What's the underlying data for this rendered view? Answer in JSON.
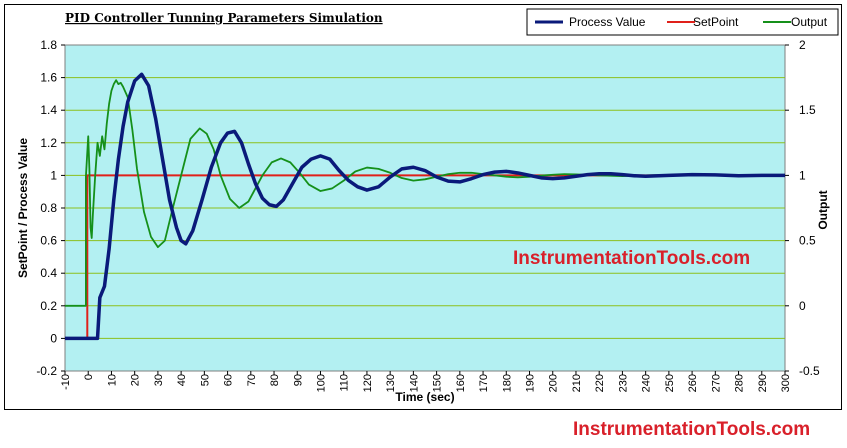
{
  "watermark_plot": "InstrumentationTools.com",
  "watermark_bottom": "InstrumentationTools.com",
  "chart_data": {
    "type": "line",
    "title": "PID Controller Tunning Parameters Simulation",
    "xlabel": "Time (sec)",
    "ylabel": "SetPoint / Process Value",
    "y2label": "Output",
    "xlim": [
      -10,
      300
    ],
    "ylim": [
      -0.2,
      1.8
    ],
    "y2lim": [
      -0.5,
      2
    ],
    "x_ticks": [
      -10,
      0,
      10,
      20,
      30,
      40,
      50,
      60,
      70,
      80,
      90,
      100,
      110,
      120,
      130,
      140,
      150,
      160,
      170,
      180,
      190,
      200,
      210,
      220,
      230,
      240,
      250,
      260,
      270,
      280,
      290,
      300
    ],
    "y_ticks": [
      "-0.2",
      "0",
      "0.2",
      "0.4",
      "0.6",
      "0.8",
      "1",
      "1.2",
      "1.4",
      "1.6",
      "1.8"
    ],
    "y2_ticks": [
      "-0.5",
      "0",
      "0.5",
      "1",
      "1.5",
      "2"
    ],
    "grid": "horizontal",
    "legend_position": "top-right",
    "colors": {
      "plot_bg": "#b3f0f2",
      "grid": "#8cbf1e",
      "process": "#0a1a7a",
      "setpoint": "#e0201a",
      "output": "#15901a"
    },
    "series": [
      {
        "name": "Process Value",
        "axis": "left",
        "color": "#0a1a7a",
        "x": [
          -10,
          2,
          3,
          4,
          5,
          7,
          9,
          11,
          13,
          15,
          17,
          20,
          23,
          26,
          29,
          32,
          35,
          38,
          40,
          42,
          45,
          49,
          53,
          57,
          60,
          63,
          66,
          69,
          72,
          75,
          78,
          81,
          84,
          88,
          92,
          96,
          100,
          104,
          108,
          112,
          116,
          120,
          125,
          130,
          135,
          140,
          145,
          150,
          155,
          160,
          165,
          170,
          175,
          180,
          185,
          190,
          195,
          200,
          205,
          210,
          215,
          220,
          225,
          230,
          235,
          240,
          250,
          260,
          270,
          280,
          290,
          300
        ],
        "y": [
          0,
          0,
          0,
          0,
          0.25,
          0.32,
          0.55,
          0.85,
          1.1,
          1.3,
          1.45,
          1.58,
          1.62,
          1.55,
          1.35,
          1.1,
          0.85,
          0.68,
          0.6,
          0.58,
          0.66,
          0.85,
          1.05,
          1.2,
          1.26,
          1.27,
          1.2,
          1.07,
          0.95,
          0.86,
          0.82,
          0.81,
          0.85,
          0.95,
          1.05,
          1.1,
          1.12,
          1.1,
          1.03,
          0.97,
          0.93,
          0.91,
          0.93,
          0.99,
          1.04,
          1.05,
          1.03,
          0.99,
          0.965,
          0.96,
          0.98,
          1.005,
          1.02,
          1.025,
          1.015,
          1.0,
          0.985,
          0.98,
          0.985,
          0.995,
          1.005,
          1.01,
          1.01,
          1.005,
          0.998,
          0.995,
          1.0,
          1.005,
          1.003,
          0.998,
          1.0,
          1.0
        ]
      },
      {
        "name": "SetPoint",
        "axis": "left",
        "color": "#e0201a",
        "x": [
          -10,
          -0.4,
          -0.4,
          300
        ],
        "y": [
          0,
          0,
          1,
          1
        ]
      },
      {
        "name": "Output",
        "axis": "right",
        "color": "#15901a",
        "x": [
          -10,
          -1,
          -1,
          0,
          0.5,
          1,
          1.5,
          2,
          3,
          4,
          5,
          6,
          7,
          8,
          9,
          10,
          11,
          12,
          13,
          14,
          15,
          17,
          19,
          21,
          24,
          27,
          30,
          33,
          36,
          40,
          44,
          48,
          51,
          54,
          57,
          61,
          65,
          69,
          72,
          75,
          79,
          83,
          87,
          91,
          95,
          100,
          105,
          110,
          115,
          120,
          125,
          130,
          135,
          140,
          145,
          150,
          155,
          160,
          165,
          170,
          175,
          180,
          185,
          190,
          195,
          200,
          205,
          210,
          220,
          230,
          240,
          250,
          260,
          270,
          280,
          290,
          300
        ],
        "y": [
          0,
          0,
          0.99,
          1.3,
          1.05,
          0.6,
          0.52,
          0.7,
          1.0,
          1.25,
          1.15,
          1.3,
          1.2,
          1.4,
          1.55,
          1.65,
          1.7,
          1.73,
          1.7,
          1.71,
          1.68,
          1.6,
          1.35,
          1.05,
          0.72,
          0.53,
          0.45,
          0.5,
          0.72,
          1.0,
          1.28,
          1.36,
          1.32,
          1.2,
          1.0,
          0.82,
          0.75,
          0.8,
          0.9,
          1.0,
          1.1,
          1.13,
          1.1,
          1.02,
          0.93,
          0.88,
          0.9,
          0.96,
          1.03,
          1.06,
          1.05,
          1.02,
          0.98,
          0.96,
          0.97,
          0.99,
          1.01,
          1.02,
          1.02,
          1.01,
          1.0,
          0.99,
          0.985,
          0.99,
          0.998,
          1.005,
          1.01,
          1.008,
          1.0,
          0.995,
          1.0,
          1.003,
          1.001,
          0.999,
          1.0,
          1.0,
          1.0
        ]
      }
    ]
  }
}
